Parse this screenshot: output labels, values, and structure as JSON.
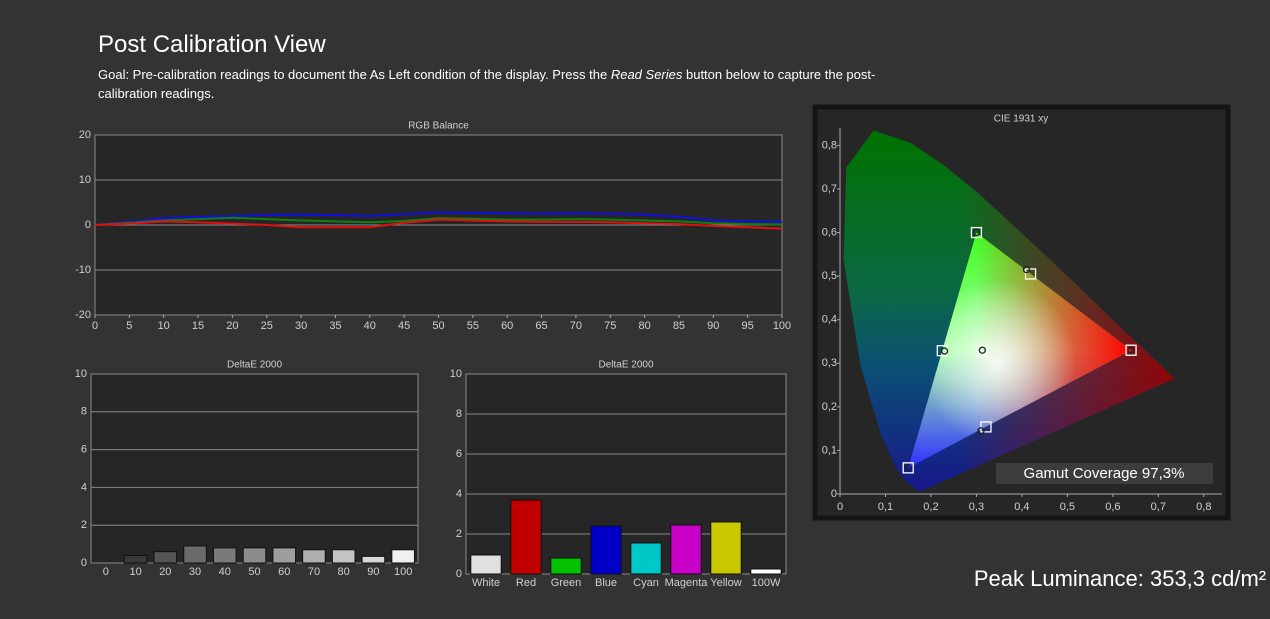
{
  "header": {
    "title": "Post Calibration View",
    "goal_before": "Goal: Pre-calibration readings to document the As Left condition of the display. Press the ",
    "goal_italic": "Read Series",
    "goal_after": " button below to capture the post-calibration readings."
  },
  "peak_luminance": "Peak Luminance: 353,3 cd/m²",
  "chart_data": [
    {
      "type": "line",
      "title": "RGB Balance",
      "x": [
        0,
        5,
        10,
        15,
        20,
        25,
        30,
        35,
        40,
        45,
        50,
        55,
        60,
        65,
        70,
        75,
        80,
        85,
        90,
        95,
        100
      ],
      "series": [
        {
          "color": "#1010e0",
          "values": [
            0,
            0.7,
            1.5,
            1.8,
            2.0,
            2.2,
            2.3,
            2.2,
            2.0,
            2.4,
            2.8,
            2.7,
            2.6,
            2.5,
            2.6,
            2.5,
            2.3,
            1.8,
            1.0,
            0.8,
            0.7
          ]
        },
        {
          "color": "#108010",
          "values": [
            0,
            0.5,
            1.0,
            1.3,
            1.6,
            1.3,
            1.0,
            0.8,
            0.6,
            0.9,
            1.5,
            1.4,
            1.2,
            1.2,
            1.3,
            1.2,
            1.0,
            0.8,
            0.4,
            0.2,
            0.1
          ]
        },
        {
          "color": "#e01010",
          "values": [
            0,
            0.3,
            0.8,
            0.6,
            0.3,
            0,
            -0.5,
            -0.5,
            -0.5,
            0.5,
            1.2,
            1.0,
            0.8,
            0.7,
            0.7,
            0.6,
            0.4,
            0.2,
            -0.2,
            -0.5,
            -0.8
          ]
        }
      ],
      "xlim": [
        0,
        100
      ],
      "xticks": [
        0,
        5,
        10,
        15,
        20,
        25,
        30,
        35,
        40,
        45,
        50,
        55,
        60,
        65,
        70,
        75,
        80,
        85,
        90,
        95,
        100
      ],
      "ylim": [
        -20,
        20
      ],
      "yticks": [
        -20,
        -10,
        0,
        10,
        20
      ],
      "grid": true
    },
    {
      "type": "bar",
      "title": "DeltaE 2000",
      "categories": [
        "0",
        "10",
        "20",
        "30",
        "40",
        "50",
        "60",
        "70",
        "80",
        "90",
        "100"
      ],
      "values": [
        0,
        0.4,
        0.6,
        0.9,
        0.8,
        0.8,
        0.8,
        0.7,
        0.7,
        0.35,
        0.7
      ],
      "colors": [
        "#222222",
        "#3a3a3a",
        "#555555",
        "#6a6a6a",
        "#7a7a7a",
        "#8c8c8c",
        "#9e9e9e",
        "#b0b0b0",
        "#c4c4c4",
        "#d8d8d8",
        "#f0f0f0"
      ],
      "ylim": [
        0,
        10
      ],
      "yticks": [
        0,
        2,
        4,
        6,
        8,
        10
      ],
      "grid": true
    },
    {
      "type": "bar",
      "title": "DeltaE 2000",
      "categories": [
        "White",
        "Red",
        "Green",
        "Blue",
        "Cyan",
        "Magenta",
        "Yellow",
        "100W"
      ],
      "values": [
        0.95,
        3.7,
        0.8,
        2.4,
        1.55,
        2.45,
        2.6,
        0.25
      ],
      "colors": [
        "#e0e0e0",
        "#c00000",
        "#00c000",
        "#0000c8",
        "#00c8c8",
        "#c800c8",
        "#c8c800",
        "#ffffff"
      ],
      "ylim": [
        0,
        10
      ],
      "yticks": [
        0,
        2,
        4,
        6,
        8,
        10
      ],
      "grid": true
    },
    {
      "type": "scatter",
      "title": "CIE 1931 xy",
      "series": [
        {
          "marker": "square",
          "color": "#ffffff",
          "x": [
            0.64,
            0.3,
            0.15,
            0.225,
            0.321,
            0.419,
            0.3127
          ],
          "y": [
            0.33,
            0.6,
            0.06,
            0.329,
            0.154,
            0.505,
            0.329
          ]
        },
        {
          "marker": "circle",
          "color": "#222222",
          "x": [
            0.64,
            0.3,
            0.15,
            0.23,
            0.31,
            0.41,
            0.313
          ],
          "y": [
            0.33,
            0.6,
            0.06,
            0.328,
            0.145,
            0.515,
            0.33
          ]
        }
      ],
      "xlim": [
        0,
        0.84
      ],
      "ylim": [
        0,
        0.84
      ],
      "xticks": [
        0,
        {
          "value": 0.1,
          "label": "0,1"
        },
        {
          "value": 0.2,
          "label": "0,2"
        },
        {
          "value": 0.3,
          "label": "0,3"
        },
        {
          "value": 0.4,
          "label": "0,4"
        },
        {
          "value": 0.5,
          "label": "0,5"
        },
        {
          "value": 0.6,
          "label": "0,6"
        },
        {
          "value": 0.7,
          "label": "0,7"
        },
        {
          "value": 0.8,
          "label": "0,8"
        }
      ],
      "yticks": [
        0,
        {
          "value": 0.1,
          "label": "0,1"
        },
        {
          "value": 0.2,
          "label": "0,2"
        },
        {
          "value": 0.3,
          "label": "0,3"
        },
        {
          "value": 0.4,
          "label": "0,4"
        },
        {
          "value": 0.5,
          "label": "0,5"
        },
        {
          "value": 0.6,
          "label": "0,6"
        },
        {
          "value": 0.7,
          "label": "0,7"
        },
        {
          "value": 0.8,
          "label": "0,8"
        }
      ],
      "grid": false,
      "annotation": "Gamut Coverage 97,3%"
    }
  ]
}
